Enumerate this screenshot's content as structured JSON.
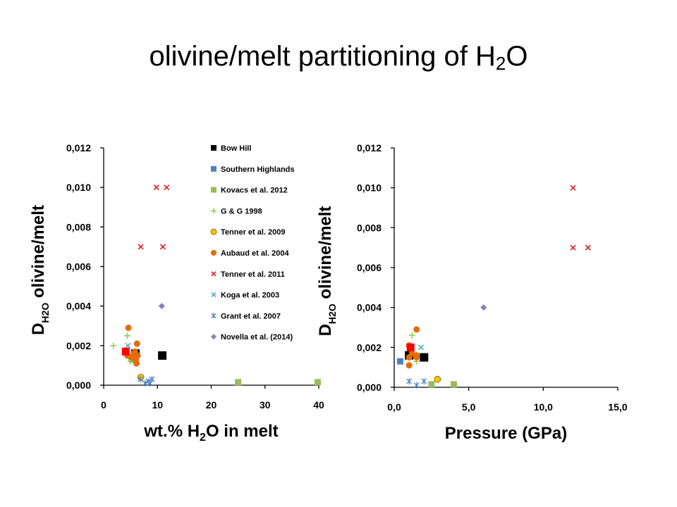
{
  "slide": {
    "title_main": "olivine/melt partitioning of H",
    "title_sub": "2",
    "title_end": "O"
  },
  "colors": {
    "bow_hill": "#000000",
    "southern_highlands": "#4f81bd",
    "kovacs": "#9bbb59",
    "gg": "#92d050",
    "tenner2009_fill": "#ffc000",
    "tenner2009_edge": "#7f6000",
    "aubaud": "#e36c09",
    "tenner2011": "#e31a1c",
    "koga": "#4bacc6",
    "grant": "#4f81bd",
    "novella": "#8e7cc3",
    "highlight": "#ff0000"
  },
  "chart_data": [
    {
      "type": "scatter",
      "ylabel_main": "D",
      "ylabel_sub": "H2O",
      "ylabel_end": " olivine/melt",
      "xlabel_main": "wt.% H",
      "xlabel_sub": "2",
      "xlabel_end": "O in melt",
      "xlim": [
        0,
        40
      ],
      "ylim": [
        0,
        0.012
      ],
      "x_ticks": [
        "0",
        "10",
        "20",
        "30",
        "40"
      ],
      "y_ticks": [
        "0,000",
        "0,002",
        "0,004",
        "0,006",
        "0,008",
        "0,010",
        "0,012"
      ],
      "legend_position": "top-right",
      "series": [
        {
          "name": "Bow Hill",
          "marker": "square",
          "color": "#000000",
          "x": [
            5.9,
            10.9
          ],
          "y": [
            0.0016,
            0.0015
          ]
        },
        {
          "name": "Southern Highlands",
          "marker": "square",
          "color": "#4f81bd",
          "x": [
            5.4
          ],
          "y": [
            0.0013
          ]
        },
        {
          "name": "Kovacs et al. 2012",
          "marker": "square",
          "color": "#9bbb59",
          "x": [
            25.0,
            39.8
          ],
          "y": [
            0.00015,
            0.00015
          ]
        },
        {
          "name": "G & G 1998",
          "marker": "plus",
          "color": "#92d050",
          "x": [
            1.8,
            4.4,
            4.7,
            5.0
          ],
          "y": [
            0.002,
            0.0025,
            0.0014,
            0.0012
          ]
        },
        {
          "name": "Tenner et al. 2009",
          "marker": "circle",
          "color": "#ffc000",
          "x": [
            6.9
          ],
          "y": [
            0.0004
          ]
        },
        {
          "name": "Aubaud et al. 2004",
          "marker": "circle",
          "color": "#e36c09",
          "x": [
            4.6,
            5.6,
            6.2,
            6.3,
            6.1,
            4.3,
            5.2,
            4.4,
            5.8,
            6.0
          ],
          "y": [
            0.0029,
            0.0016,
            0.0021,
            0.0015,
            0.0011,
            0.0016,
            0.0014,
            0.0015,
            0.0017,
            0.0013
          ]
        },
        {
          "name": "Tenner et al. 2011",
          "marker": "x",
          "color": "#e31a1c",
          "x": [
            9.8,
            11.7,
            6.9,
            11.0
          ],
          "y": [
            0.01,
            0.01,
            0.007,
            0.007
          ]
        },
        {
          "name": "Koga et al. 2003",
          "marker": "x",
          "color": "#4bacc6",
          "x": [
            4.5
          ],
          "y": [
            0.002
          ]
        },
        {
          "name": "Grant et al. 2007",
          "marker": "asterisk",
          "color": "#4f81bd",
          "x": [
            6.8,
            8.3,
            9.0,
            8.6,
            7.7
          ],
          "y": [
            0.0003,
            0.0002,
            0.0003,
            0.0001,
            0.0001
          ]
        },
        {
          "name": "Novella et al. (2014)",
          "marker": "diamond",
          "color": "#8e7cc3",
          "x": [
            10.8
          ],
          "y": [
            0.004
          ]
        },
        {
          "name": "",
          "marker": "square",
          "color": "#ff0000",
          "x": [
            4.1
          ],
          "y": [
            0.0017
          ]
        }
      ]
    },
    {
      "type": "scatter",
      "ylabel_main": "D",
      "ylabel_sub": "H2O",
      "ylabel_end": " olivine/melt",
      "xlabel": "Pressure (GPa)",
      "xlim": [
        0,
        15
      ],
      "ylim": [
        0,
        0.012
      ],
      "x_ticks": [
        "0,0",
        "5,0",
        "10,0",
        "15,0"
      ],
      "y_ticks": [
        "0,000",
        "0,002",
        "0,004",
        "0,006",
        "0,008",
        "0,010",
        "0,012"
      ],
      "series": [
        {
          "name": "Bow Hill",
          "marker": "square",
          "color": "#000000",
          "x": [
            1.0,
            2.0
          ],
          "y": [
            0.0016,
            0.0015
          ]
        },
        {
          "name": "Southern Highlands",
          "marker": "square",
          "color": "#4f81bd",
          "x": [
            0.4
          ],
          "y": [
            0.0013
          ]
        },
        {
          "name": "Kovacs et al. 2012",
          "marker": "square",
          "color": "#9bbb59",
          "x": [
            2.5,
            4.0
          ],
          "y": [
            0.00015,
            0.00015
          ]
        },
        {
          "name": "G & G 1998",
          "marker": "plus",
          "color": "#92d050",
          "x": [
            1.2,
            1.5,
            1.0
          ],
          "y": [
            0.0026,
            0.0013,
            0.002
          ]
        },
        {
          "name": "Tenner et al. 2009",
          "marker": "circle",
          "color": "#ffc000",
          "x": [
            2.9
          ],
          "y": [
            0.0004
          ]
        },
        {
          "name": "Aubaud et al. 2004",
          "marker": "circle",
          "color": "#e36c09",
          "x": [
            1.5,
            1.0,
            1.0,
            1.5,
            1.0,
            1.5,
            1.2
          ],
          "y": [
            0.0029,
            0.0021,
            0.0011,
            0.0016,
            0.0015,
            0.0015,
            0.0017
          ]
        },
        {
          "name": "Tenner et al. 2011",
          "marker": "x",
          "color": "#e31a1c",
          "x": [
            12.0,
            12.0,
            13.0
          ],
          "y": [
            0.01,
            0.007,
            0.007
          ]
        },
        {
          "name": "Koga et al. 2003",
          "marker": "x",
          "color": "#4bacc6",
          "x": [
            1.8
          ],
          "y": [
            0.002
          ]
        },
        {
          "name": "Grant et al. 2007",
          "marker": "asterisk",
          "color": "#4f81bd",
          "x": [
            1.0,
            1.5,
            2.0
          ],
          "y": [
            0.0003,
            0.0001,
            0.0003
          ]
        },
        {
          "name": "Novella et al. (2014)",
          "marker": "diamond",
          "color": "#8e7cc3",
          "x": [
            6.0
          ],
          "y": [
            0.004
          ]
        },
        {
          "name": "",
          "marker": "square",
          "color": "#ff0000",
          "x": [
            1.1
          ],
          "y": [
            0.002
          ]
        }
      ]
    }
  ]
}
